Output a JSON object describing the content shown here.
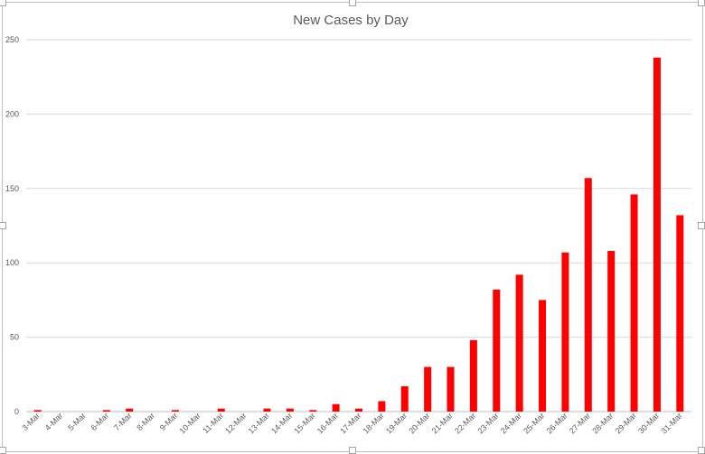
{
  "chart_data": {
    "type": "bar",
    "title": "New Cases by Day",
    "xlabel": "",
    "ylabel": "",
    "ylim": [
      0,
      250
    ],
    "yticks": [
      0,
      50,
      100,
      150,
      200,
      250
    ],
    "grid": true,
    "bar_color": "#ff0000",
    "categories": [
      "3-Mar",
      "4-Mar",
      "5-Mar",
      "6-Mar",
      "7-Mar",
      "8-Mar",
      "9-Mar",
      "10-Mar",
      "11-Mar",
      "12-Mar",
      "13-Mar",
      "14-Mar",
      "15-Mar",
      "16-Mar",
      "17-Mar",
      "18-Mar",
      "19-Mar",
      "20-Mar",
      "21-Mar",
      "22-Mar",
      "23-Mar",
      "24-Mar",
      "25-Mar",
      "26-Mar",
      "27-Mar",
      "28-Mar",
      "29-Mar",
      "30-Mar",
      "31-Mar"
    ],
    "values": [
      1,
      0,
      0,
      1,
      2,
      0,
      1,
      0,
      2,
      0,
      2,
      2,
      1,
      5,
      2,
      7,
      17,
      30,
      30,
      48,
      82,
      92,
      75,
      107,
      157,
      108,
      146,
      238,
      132
    ]
  }
}
